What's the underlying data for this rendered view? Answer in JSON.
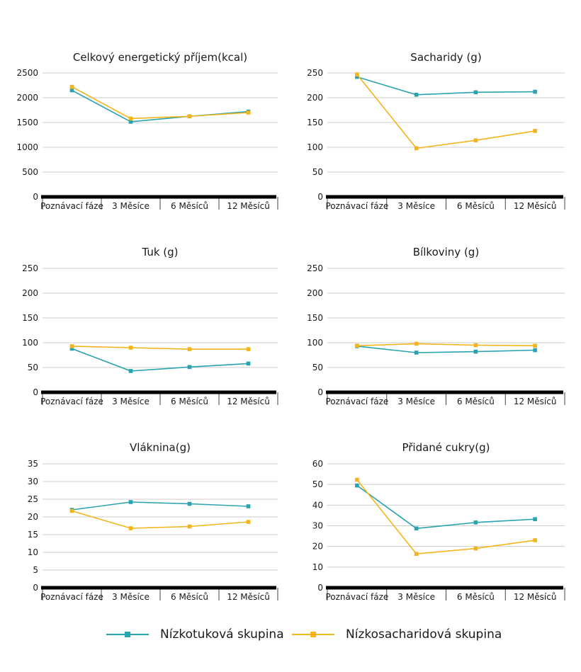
{
  "colors": {
    "low_fat": "#2aa3b0",
    "low_carb": "#f4b41a",
    "grid": "#cccccc",
    "axis": "#000000"
  },
  "legend": {
    "low_fat": "Nízkotuková skupina",
    "low_carb": "Nízkosacharidová skupina"
  },
  "chart_data": [
    {
      "type": "line",
      "title": "Celkový energetický příjem(kcal)",
      "categories": [
        "Poznávací fáze",
        "3 Měsíce",
        "6 Měsíců",
        "12 Měsíců"
      ],
      "yticks": [
        "0",
        "500",
        "1000",
        "1500",
        "2000",
        "2500"
      ],
      "ylim": [
        0,
        2500
      ],
      "series": [
        {
          "name": "Nízkotuková skupina",
          "values": [
            2150,
            1515,
            1625,
            1720
          ]
        },
        {
          "name": "Nízkosacharidová skupina",
          "values": [
            2220,
            1580,
            1625,
            1700
          ]
        }
      ]
    },
    {
      "type": "line",
      "title": "Sacharidy (g)",
      "categories": [
        "Poznávací fáze",
        "3 Měsíce",
        "6 Měsíců",
        "12 Měsíců"
      ],
      "yticks": [
        "0",
        "50",
        "100",
        "150",
        "200",
        "250"
      ],
      "ylim": [
        0,
        250
      ],
      "series": [
        {
          "name": "Nízkotuková skupina",
          "values": [
            242,
            206,
            211,
            212
          ]
        },
        {
          "name": "Nízkosacharidová skupina",
          "values": [
            247,
            98,
            114,
            133
          ]
        }
      ]
    },
    {
      "type": "line",
      "title": "Tuk (g)",
      "categories": [
        "Poznávací fáze",
        "3 Měsíce",
        "6 Měsíců",
        "12 Měsíců"
      ],
      "yticks": [
        "0",
        "50",
        "100",
        "150",
        "200",
        "250"
      ],
      "ylim": [
        0,
        250
      ],
      "series": [
        {
          "name": "Nízkotuková skupina",
          "values": [
            88,
            43,
            51,
            58
          ]
        },
        {
          "name": "Nízkosacharidová skupina",
          "values": [
            93,
            90,
            87,
            87
          ]
        }
      ]
    },
    {
      "type": "line",
      "title": "Bílkoviny (g)",
      "categories": [
        "Poznávací fáze",
        "3 Měsíce",
        "6 Měsíců",
        "12 Měsíců"
      ],
      "yticks": [
        "0",
        "50",
        "100",
        "150",
        "200",
        "250"
      ],
      "ylim": [
        0,
        250
      ],
      "series": [
        {
          "name": "Nízkotuková skupina",
          "values": [
            93,
            80,
            82,
            85
          ]
        },
        {
          "name": "Nízkosacharidová skupina",
          "values": [
            94,
            98,
            95,
            94
          ]
        }
      ]
    },
    {
      "type": "line",
      "title": "Vláknina(g)",
      "categories": [
        "Poznávací fáze",
        "3 Měsíce",
        "6 Měsíců",
        "12 Měsíců"
      ],
      "yticks": [
        "0",
        "5",
        "10",
        "15",
        "20",
        "25",
        "30",
        "35"
      ],
      "ylim": [
        0,
        35
      ],
      "series": [
        {
          "name": "Nízkotuková skupina",
          "values": [
            22,
            24.2,
            23.7,
            23
          ]
        },
        {
          "name": "Nízkosacharidová skupina",
          "values": [
            21.7,
            16.8,
            17.3,
            18.6
          ]
        }
      ]
    },
    {
      "type": "line",
      "title": "Přidané cukry(g)",
      "categories": [
        "Poznávací fáze",
        "3 Měsíce",
        "6 Měsíců",
        "12 Měsíců"
      ],
      "yticks": [
        "0",
        "10",
        "20",
        "30",
        "40",
        "50",
        "60"
      ],
      "ylim": [
        0,
        60
      ],
      "series": [
        {
          "name": "Nízkotuková skupina",
          "values": [
            49.5,
            28.7,
            31.6,
            33.2
          ]
        },
        {
          "name": "Nízkosacharidová skupina",
          "values": [
            52.3,
            16.4,
            19,
            23
          ]
        }
      ]
    }
  ]
}
